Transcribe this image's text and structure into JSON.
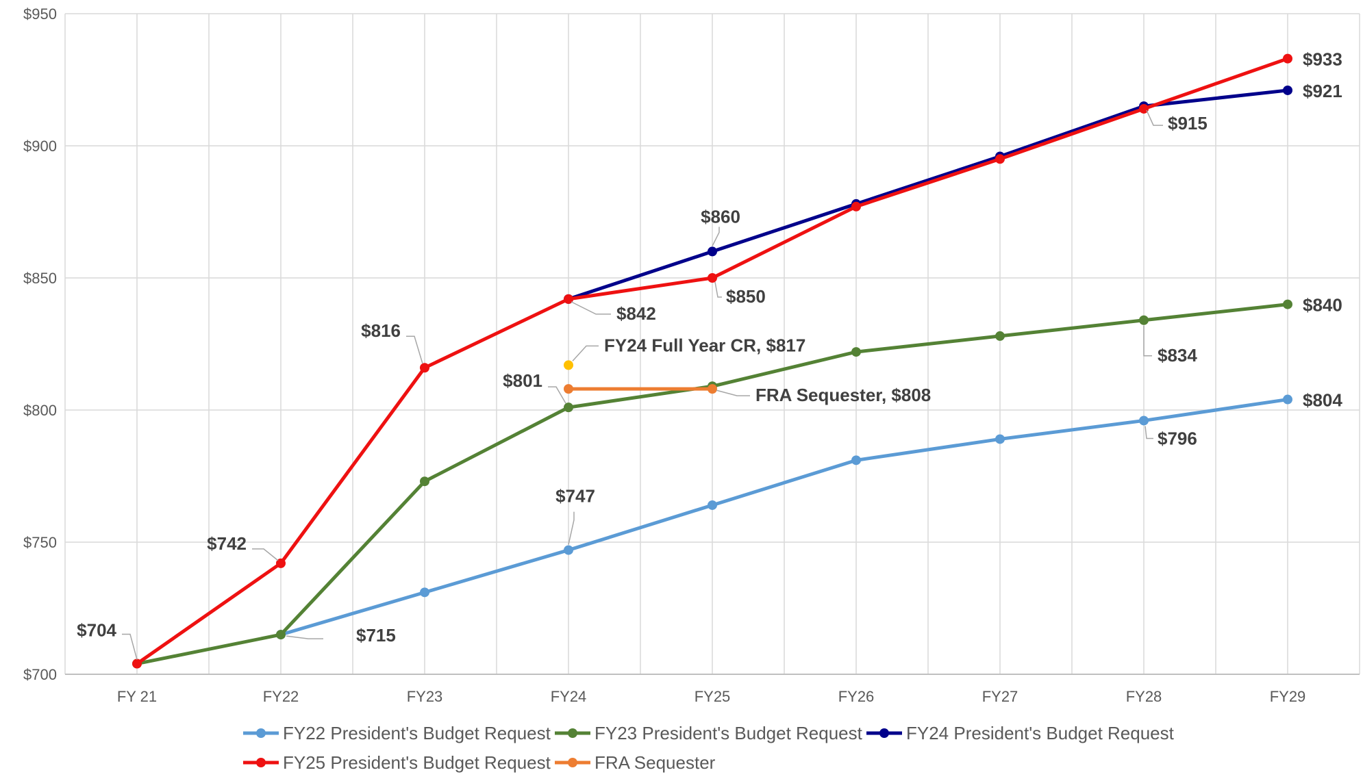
{
  "chart_data": {
    "type": "line",
    "title": "",
    "xlabel": "",
    "ylabel": "",
    "categories": [
      "FY 21",
      "FY22",
      "FY23",
      "FY24",
      "FY25",
      "FY26",
      "FY27",
      "FY28",
      "FY29"
    ],
    "ylim": [
      700,
      950
    ],
    "yticks": [
      700,
      750,
      800,
      850,
      900,
      950
    ],
    "ytick_labels": [
      "$700",
      "$750",
      "$800",
      "$850",
      "$900",
      "$950"
    ],
    "grid": true,
    "legend_position": "bottom",
    "series": [
      {
        "name": "FY22 President's Budget Request",
        "color": "#5b9bd5",
        "values": [
          null,
          715,
          731,
          747,
          764,
          781,
          789,
          796,
          804
        ]
      },
      {
        "name": "FY23 President's Budget Request",
        "color": "#548235",
        "values": [
          704,
          715,
          773,
          801,
          809,
          822,
          828,
          834,
          840
        ]
      },
      {
        "name": "FY24 President's Budget Request",
        "color": "#00008b",
        "values": [
          null,
          null,
          null,
          842,
          860,
          878,
          896,
          915,
          921
        ]
      },
      {
        "name": "FY25 President's Budget Request",
        "color": "#ee1111",
        "values": [
          704,
          742,
          816,
          842,
          850,
          877,
          895,
          914,
          933
        ]
      },
      {
        "name": "FRA Sequester",
        "color": "#ed7d31",
        "values": [
          null,
          null,
          null,
          808,
          808,
          null,
          null,
          null,
          null
        ]
      }
    ],
    "extra_points": [
      {
        "x": "FY24",
        "y": 817,
        "color": "#ffc000"
      }
    ],
    "annotations": [
      {
        "text": "$704",
        "x": "FY 21",
        "y": 704
      },
      {
        "text": "$742",
        "x": "FY22",
        "y": 742
      },
      {
        "text": "$715",
        "x": "FY22",
        "y": 715
      },
      {
        "text": "$816",
        "x": "FY23",
        "y": 816
      },
      {
        "text": "$842",
        "x": "FY24",
        "y": 842
      },
      {
        "text": "$801",
        "x": "FY24",
        "y": 801
      },
      {
        "text": "$747",
        "x": "FY24",
        "y": 747
      },
      {
        "text": "FY24 Full Year CR, $817",
        "x": "FY24",
        "y": 817
      },
      {
        "text": "$860",
        "x": "FY25",
        "y": 860
      },
      {
        "text": "$850",
        "x": "FY25",
        "y": 850
      },
      {
        "text": "FRA Sequester, $808",
        "x": "FY25",
        "y": 808
      },
      {
        "text": "$915",
        "x": "FY28",
        "y": 915
      },
      {
        "text": "$834",
        "x": "FY28",
        "y": 834
      },
      {
        "text": "$796",
        "x": "FY28",
        "y": 796
      },
      {
        "text": "$933",
        "x": "FY29",
        "y": 933
      },
      {
        "text": "$921",
        "x": "FY29",
        "y": 921
      },
      {
        "text": "$840",
        "x": "FY29",
        "y": 840
      },
      {
        "text": "$804",
        "x": "FY29",
        "y": 804
      }
    ]
  }
}
